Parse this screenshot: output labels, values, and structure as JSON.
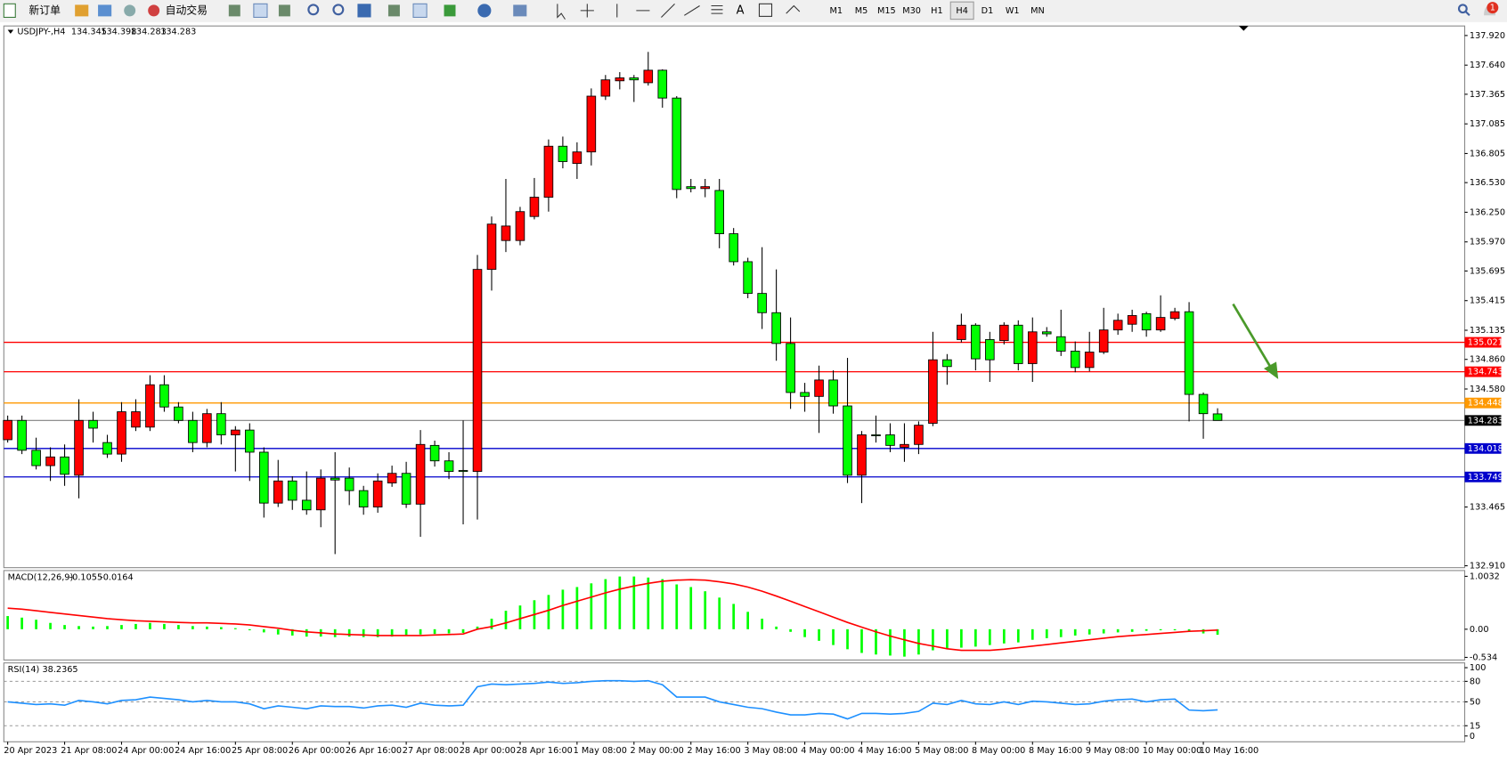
{
  "toolbar": {
    "new_order": "新订单",
    "auto_trading": "自动交易",
    "timeframes": [
      "M1",
      "M5",
      "M15",
      "M30",
      "H1",
      "H4",
      "D1",
      "W1",
      "MN"
    ],
    "active_timeframe": 5,
    "notifications": "1"
  },
  "chart_data": [
    {
      "type": "candlestick",
      "title": "USDJPY-,H4",
      "categories": [
        "20 Apr 2023",
        null,
        null,
        null,
        "21 Apr 08:00",
        null,
        null,
        null,
        "24 Apr 00:00",
        null,
        null,
        null,
        "24 Apr 16:00",
        null,
        null,
        null,
        "25 Apr 08:00",
        null,
        null,
        null,
        "26 Apr 00:00",
        null,
        null,
        null,
        "26 Apr 16:00",
        null,
        null,
        null,
        "27 Apr 08:00",
        null,
        null,
        null,
        "28 Apr 00:00",
        null,
        null,
        null,
        "28 Apr 16:00",
        null,
        null,
        null,
        "1 May 08:00",
        null,
        null,
        null,
        "2 May 00:00",
        null,
        null,
        null,
        "2 May 16:00",
        null,
        null,
        null,
        "3 May 08:00",
        null,
        null,
        null,
        "4 May 00:00",
        null,
        null,
        null,
        "4 May 16:00",
        null,
        null,
        null,
        "5 May 08:00",
        null,
        null,
        null,
        "8 May 00:00",
        null,
        null,
        null,
        "8 May 16:00",
        null,
        null,
        null,
        "9 May 08:00",
        null,
        null,
        null,
        "10 May 00:00",
        null,
        null,
        null,
        "10 May 16:00",
        null
      ],
      "open": [
        134.101,
        134.283,
        134.001,
        133.856,
        133.938,
        133.765,
        134.283,
        134.074,
        133.965,
        134.22,
        134.22,
        134.62,
        134.41,
        134.283,
        134.074,
        134.347,
        134.147,
        134.192,
        133.983,
        133.502,
        133.711,
        133.529,
        133.438,
        133.738,
        133.738,
        133.62,
        133.465,
        133.692,
        133.783,
        133.492,
        134.047,
        133.901,
        133.81,
        133.801,
        135.71,
        135.983,
        135.983,
        136.21,
        136.392,
        136.874,
        136.711,
        136.82,
        137.347,
        137.492,
        137.52,
        137.474,
        137.592,
        137.329,
        136.492,
        136.474,
        136.456,
        136.047,
        135.783,
        135.483,
        135.301,
        135.01,
        134.547,
        134.51,
        134.665,
        134.42,
        133.765,
        134.147,
        134.147,
        134.029,
        134.056,
        134.256,
        134.856,
        135.047,
        135.183,
        135.047,
        135.038,
        135.183,
        134.82,
        135.12,
        135.074,
        134.938,
        134.783,
        134.929,
        135.138,
        135.192,
        135.292,
        135.138,
        135.247,
        135.31,
        134.529,
        134.345
      ],
      "high": [
        134.329,
        134.329,
        134.12,
        134.029,
        134.056,
        134.483,
        134.365,
        134.147,
        134.456,
        134.483,
        134.71,
        134.71,
        134.456,
        134.365,
        134.392,
        134.456,
        134.229,
        134.256,
        134.029,
        133.91,
        133.756,
        133.801,
        133.82,
        133.983,
        133.838,
        133.665,
        133.783,
        133.856,
        133.892,
        134.192,
        134.092,
        133.983,
        134.283,
        135.847,
        136.21,
        136.565,
        136.301,
        136.574,
        136.938,
        136.965,
        136.911,
        137.42,
        137.547,
        137.574,
        137.547,
        137.765,
        137.601,
        137.347,
        136.565,
        136.565,
        136.565,
        136.101,
        135.82,
        135.92,
        135.71,
        135.256,
        134.638,
        134.801,
        134.756,
        134.874,
        134.183,
        134.329,
        134.256,
        134.256,
        134.274,
        135.12,
        134.91,
        135.292,
        135.201,
        135.12,
        135.21,
        135.229,
        135.256,
        135.165,
        135.329,
        135.029,
        135.12,
        135.347,
        135.292,
        135.329,
        135.31,
        135.465,
        135.347,
        135.401,
        134.547,
        134.398
      ],
      "low": [
        134.074,
        133.965,
        133.82,
        133.711,
        133.665,
        133.547,
        134.074,
        133.929,
        133.892,
        134.183,
        134.183,
        134.365,
        134.256,
        133.983,
        134.029,
        134.056,
        133.801,
        133.711,
        133.365,
        133.465,
        133.438,
        133.392,
        133.274,
        133.02,
        133.483,
        133.392,
        133.411,
        133.656,
        133.456,
        133.183,
        133.847,
        133.729,
        133.301,
        133.347,
        135.51,
        135.874,
        135.938,
        136.183,
        136.256,
        136.665,
        136.565,
        136.692,
        137.311,
        137.411,
        137.292,
        137.447,
        137.238,
        136.383,
        136.438,
        136.392,
        135.91,
        135.747,
        135.438,
        135.147,
        134.847,
        134.392,
        134.365,
        134.165,
        134.347,
        133.692,
        133.502,
        134.074,
        133.983,
        133.892,
        133.965,
        134.229,
        134.62,
        135.02,
        134.756,
        134.647,
        135.001,
        134.756,
        134.647,
        135.074,
        134.892,
        134.738,
        134.747,
        134.91,
        135.092,
        135.12,
        135.074,
        135.12,
        135.229,
        134.274,
        134.11,
        134.283
      ],
      "close": [
        134.283,
        134.001,
        133.856,
        133.938,
        133.774,
        134.283,
        134.21,
        133.965,
        134.365,
        134.365,
        134.62,
        134.41,
        134.283,
        134.074,
        134.347,
        134.147,
        134.192,
        133.983,
        133.502,
        133.711,
        133.529,
        133.438,
        133.738,
        133.72,
        133.62,
        133.465,
        133.711,
        133.783,
        133.492,
        134.056,
        133.901,
        133.801,
        133.801,
        135.71,
        136.138,
        136.12,
        136.256,
        136.392,
        136.874,
        136.729,
        136.82,
        137.347,
        137.501,
        137.52,
        137.501,
        137.592,
        137.329,
        136.465,
        136.474,
        136.492,
        136.047,
        135.783,
        135.483,
        135.301,
        135.01,
        134.547,
        134.51,
        134.665,
        134.42,
        133.765,
        134.147,
        134.138,
        134.047,
        134.056,
        134.238,
        134.856,
        134.792,
        135.183,
        134.865,
        134.856,
        135.183,
        134.82,
        135.12,
        135.101,
        134.938,
        134.783,
        134.929,
        135.138,
        135.229,
        135.274,
        135.138,
        135.256,
        135.31,
        134.529,
        134.347,
        134.283
      ],
      "up_color": "#ff0000",
      "down_color": "#00ff00",
      "ylim": [
        132.892,
        138.001
      ],
      "yticks": [
        {
          "value": 137.92,
          "label": "137.920"
        },
        {
          "value": 137.64,
          "label": "137.640"
        },
        137.365,
        137.085,
        136.805,
        {
          "value": 136.53,
          "label": "136.530"
        },
        {
          "value": 136.25,
          "label": "136.250"
        },
        {
          "value": 135.97,
          "label": "135.970"
        },
        135.695,
        135.415,
        135.135,
        {
          "value": 134.86,
          "label": "134.860"
        },
        {
          "value": 134.58,
          "label": "134.580"
        },
        133.465,
        {
          "value": 132.91,
          "label": "132.910"
        }
      ],
      "levels": [
        {
          "value": 135.021,
          "color": "#ff0000"
        },
        {
          "value": 134.743,
          "color": "#ff0000"
        },
        {
          "value": 134.448,
          "color": "#ff9900"
        },
        {
          "value": 134.018,
          "color": "#0000cc"
        },
        {
          "value": 133.749,
          "color": "#0000cc"
        }
      ],
      "price_line": true
    },
    {
      "type": "macd",
      "title": "MACD(12,26,9)",
      "series": [
        {
          "color": "#00ff00",
          "values": [
            0.25,
            0.22,
            0.18,
            0.12,
            0.08,
            0.06,
            0.05,
            0.06,
            0.08,
            0.1,
            0.12,
            0.1,
            0.08,
            0.06,
            0.05,
            0.04,
            0.02,
            -0.02,
            -0.06,
            -0.1,
            -0.12,
            -0.14,
            -0.14,
            -0.15,
            -0.14,
            -0.15,
            -0.15,
            -0.14,
            -0.13,
            -0.1,
            -0.09,
            -0.08,
            -0.07,
            0.05,
            0.2,
            0.35,
            0.45,
            0.55,
            0.65,
            0.75,
            0.8,
            0.87,
            0.95,
            1.0,
            1.0,
            0.98,
            0.95,
            0.85,
            0.8,
            0.72,
            0.6,
            0.48,
            0.33,
            0.2,
            0.05,
            -0.05,
            -0.15,
            -0.22,
            -0.3,
            -0.38,
            -0.45,
            -0.48,
            -0.5,
            -0.52,
            -0.48,
            -0.4,
            -0.38,
            -0.35,
            -0.33,
            -0.3,
            -0.27,
            -0.25,
            -0.2,
            -0.17,
            -0.15,
            -0.12,
            -0.1,
            -0.08,
            -0.06,
            -0.05,
            -0.03,
            -0.02,
            -0.02,
            -0.03,
            -0.08,
            -0.1055
          ]
        },
        {
          "color": "#ff0000",
          "values": [
            0.4,
            0.38,
            0.35,
            0.32,
            0.29,
            0.26,
            0.23,
            0.2,
            0.18,
            0.16,
            0.15,
            0.14,
            0.13,
            0.12,
            0.12,
            0.11,
            0.1,
            0.08,
            0.05,
            0.02,
            -0.02,
            -0.05,
            -0.07,
            -0.09,
            -0.1,
            -0.11,
            -0.12,
            -0.12,
            -0.12,
            -0.12,
            -0.11,
            -0.1,
            -0.09,
            0.0,
            0.05,
            0.12,
            0.2,
            0.28,
            0.36,
            0.45,
            0.53,
            0.61,
            0.69,
            0.76,
            0.82,
            0.87,
            0.91,
            0.93,
            0.94,
            0.93,
            0.9,
            0.86,
            0.8,
            0.72,
            0.63,
            0.53,
            0.43,
            0.33,
            0.23,
            0.13,
            0.04,
            -0.05,
            -0.13,
            -0.2,
            -0.27,
            -0.32,
            -0.37,
            -0.4,
            -0.4,
            -0.4,
            -0.38,
            -0.35,
            -0.32,
            -0.29,
            -0.26,
            -0.23,
            -0.2,
            -0.17,
            -0.14,
            -0.12,
            -0.1,
            -0.08,
            -0.06,
            -0.04,
            -0.03,
            -0.0164
          ]
        }
      ],
      "ylim": [
        -0.584,
        1.113
      ],
      "yticks": [
        1.0032,
        {
          "value": 0,
          "label": "0.00"
        },
        -0.534
      ]
    },
    {
      "type": "rsi",
      "title": "RSI(14)",
      "series": [
        {
          "color": "#1e90ff",
          "values": [
            50,
            48,
            46,
            47,
            45,
            52,
            50,
            47,
            52,
            53,
            57,
            55,
            53,
            50,
            52,
            50,
            50,
            47,
            40,
            44,
            42,
            40,
            44,
            43,
            43,
            41,
            44,
            45,
            42,
            48,
            45,
            44,
            45,
            72,
            76,
            75,
            76,
            77,
            79,
            77,
            78,
            80,
            81,
            81,
            80,
            81,
            75,
            57,
            57,
            57,
            50,
            46,
            42,
            40,
            35,
            31,
            31,
            33,
            32,
            25,
            33,
            33,
            32,
            33,
            36,
            48,
            46,
            52,
            47,
            46,
            50,
            46,
            51,
            50,
            48,
            46,
            47,
            51,
            53,
            54,
            50,
            53,
            54,
            38,
            37,
            38.2365
          ]
        }
      ],
      "ylim": [
        -8.5,
        107
      ],
      "yticks": [
        100,
        80,
        50,
        15,
        0
      ],
      "levels": [
        80,
        50,
        15
      ]
    }
  ]
}
